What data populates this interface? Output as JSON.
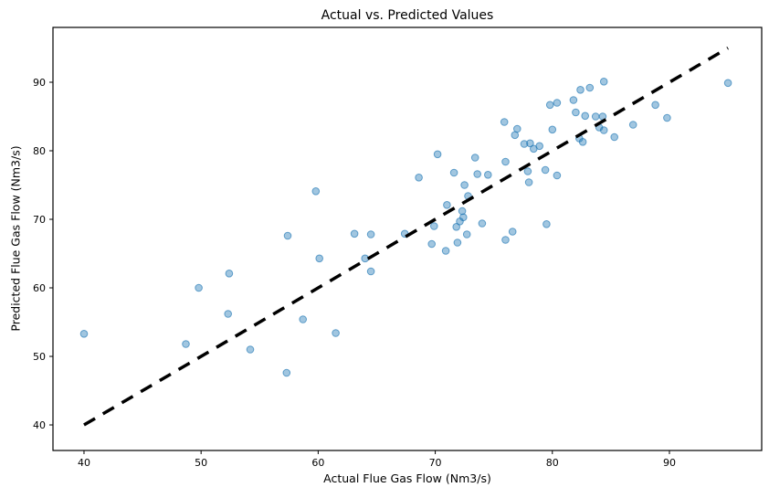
{
  "figure": {
    "title": "Actual vs. Predicted Values"
  },
  "chart_data": {
    "type": "scatter",
    "title": "Actual vs. Predicted Values",
    "xlabel": "Actual Flue Gas Flow (Nm3/s)",
    "ylabel": "Predicted Flue Gas Flow (Nm3/s)",
    "xlim": [
      37.35,
      97.88
    ],
    "ylim": [
      36.27,
      98.0
    ],
    "xticks": [
      40,
      50,
      60,
      70,
      80,
      90
    ],
    "yticks": [
      40,
      50,
      60,
      70,
      80,
      90
    ],
    "grid": false,
    "legend_position": "none",
    "marker_color": "#1f77b4",
    "marker_alpha": 0.5,
    "identity_line": {
      "x": [
        40,
        95
      ],
      "y": [
        40,
        95
      ],
      "style": "dashed",
      "color": "#000000",
      "linewidth": 3.5
    },
    "series": [
      {
        "name": "predicted-vs-actual",
        "points": [
          [
            40.0,
            53.3
          ],
          [
            48.7,
            51.8
          ],
          [
            49.8,
            60.0
          ],
          [
            52.3,
            56.2
          ],
          [
            52.4,
            62.1
          ],
          [
            54.2,
            51.0
          ],
          [
            57.3,
            47.6
          ],
          [
            57.4,
            67.6
          ],
          [
            58.7,
            55.4
          ],
          [
            59.8,
            74.1
          ],
          [
            60.1,
            64.3
          ],
          [
            61.5,
            53.4
          ],
          [
            63.1,
            67.9
          ],
          [
            64.0,
            64.3
          ],
          [
            64.5,
            67.8
          ],
          [
            64.5,
            62.4
          ],
          [
            67.4,
            67.9
          ],
          [
            68.6,
            76.1
          ],
          [
            69.9,
            69.0
          ],
          [
            69.7,
            66.4
          ],
          [
            70.2,
            79.5
          ],
          [
            70.9,
            65.4
          ],
          [
            71.0,
            72.1
          ],
          [
            71.6,
            76.8
          ],
          [
            71.9,
            66.6
          ],
          [
            72.3,
            71.2
          ],
          [
            72.4,
            70.3
          ],
          [
            72.1,
            69.7
          ],
          [
            71.8,
            68.9
          ],
          [
            72.8,
            73.4
          ],
          [
            72.5,
            75.0
          ],
          [
            72.7,
            67.8
          ],
          [
            73.4,
            79.0
          ],
          [
            73.6,
            76.6
          ],
          [
            74.0,
            69.4
          ],
          [
            74.5,
            76.5
          ],
          [
            75.9,
            84.2
          ],
          [
            76.0,
            78.4
          ],
          [
            76.0,
            67.0
          ],
          [
            76.6,
            68.2
          ],
          [
            76.8,
            82.3
          ],
          [
            77.0,
            83.2
          ],
          [
            77.6,
            81.0
          ],
          [
            78.1,
            81.1
          ],
          [
            78.4,
            80.3
          ],
          [
            78.9,
            80.7
          ],
          [
            77.9,
            77.0
          ],
          [
            78.0,
            75.4
          ],
          [
            79.4,
            77.2
          ],
          [
            79.5,
            69.3
          ],
          [
            79.8,
            86.7
          ],
          [
            80.4,
            87.0
          ],
          [
            80.0,
            83.1
          ],
          [
            80.4,
            76.4
          ],
          [
            81.8,
            87.4
          ],
          [
            82.0,
            85.6
          ],
          [
            82.3,
            81.8
          ],
          [
            82.6,
            81.3
          ],
          [
            82.4,
            88.9
          ],
          [
            83.2,
            89.2
          ],
          [
            82.8,
            85.1
          ],
          [
            83.7,
            85.0
          ],
          [
            84.3,
            85.0
          ],
          [
            84.4,
            90.1
          ],
          [
            84.0,
            83.4
          ],
          [
            84.4,
            83.0
          ],
          [
            85.3,
            82.0
          ],
          [
            86.9,
            83.8
          ],
          [
            88.8,
            86.7
          ],
          [
            89.8,
            84.8
          ],
          [
            95.0,
            89.9
          ]
        ]
      }
    ]
  }
}
